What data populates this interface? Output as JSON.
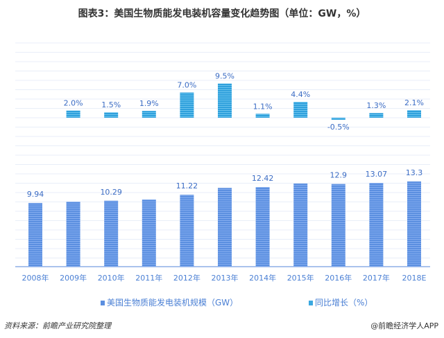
{
  "title": "图表3：美国生物质能发电装机容量变化趋势图（单位：GW，%）",
  "chart_data": {
    "type": "bar",
    "categories": [
      "2008年",
      "2009年",
      "2010年",
      "2011年",
      "2012年",
      "2013年",
      "2014年",
      "2015年",
      "2016年",
      "2017年",
      "2018E"
    ],
    "series": [
      {
        "name": "美国生物质能发电装机规模（GW）",
        "values": [
          9.94,
          10.14,
          10.29,
          10.49,
          11.22,
          12.29,
          12.42,
          12.97,
          12.9,
          13.07,
          13.3
        ],
        "labels": [
          "9.94",
          null,
          "10.29",
          null,
          "11.22",
          null,
          "12.42",
          null,
          "12.9",
          "13.07",
          "13.3"
        ],
        "color": "#5b8fe0"
      },
      {
        "name": "同比增长（%）",
        "values": [
          null,
          2.0,
          1.5,
          1.9,
          7.0,
          9.5,
          1.1,
          4.4,
          -0.5,
          1.3,
          2.1
        ],
        "labels": [
          null,
          "2.0%",
          "1.5%",
          "1.9%",
          "7.0%",
          "9.5%",
          "1.1%",
          "4.4%",
          "-0.5%",
          "1.3%",
          "2.1%"
        ],
        "color": "#3aa8e0"
      }
    ],
    "legend": "bottom",
    "grid": true
  },
  "source": "资料来源：前瞻产业研究院整理",
  "brand": "@前瞻经济学人APP"
}
